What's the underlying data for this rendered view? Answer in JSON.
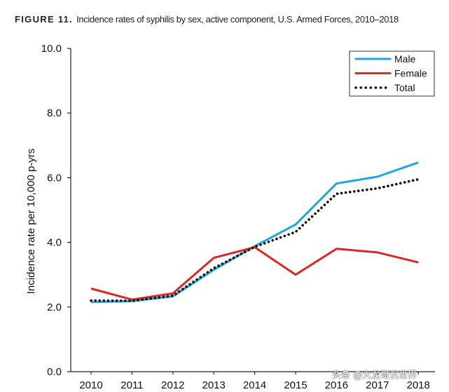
{
  "figure": {
    "label": "FIGURE 11.",
    "title": "Incidence rates of syphilis by sex, active component, U.S. Armed Forces, 2010–2018"
  },
  "chart_data": {
    "type": "line",
    "title": "Incidence rates of syphilis by sex, active component, U.S. Armed Forces, 2010–2018",
    "xlabel": "",
    "ylabel": "Incidence rate per 10,000 p-yrs",
    "categories": [
      "2010",
      "2011",
      "2012",
      "2013",
      "2014",
      "2015",
      "2016",
      "2017",
      "2018"
    ],
    "ylim": [
      0,
      10
    ],
    "yticks": [
      "0.0",
      "2.0",
      "4.0",
      "6.0",
      "8.0",
      "10.0"
    ],
    "grid": false,
    "legend_position": "top-right",
    "series": [
      {
        "name": "Male",
        "color": "#1ea7df",
        "style": "solid",
        "values": [
          2.15,
          2.18,
          2.33,
          3.15,
          3.88,
          4.55,
          5.82,
          6.03,
          6.47
        ]
      },
      {
        "name": "Female",
        "color": "#d42a2a",
        "style": "solid",
        "values": [
          2.57,
          2.23,
          2.42,
          3.52,
          3.85,
          3.0,
          3.8,
          3.69,
          3.38
        ]
      },
      {
        "name": "Total",
        "color": "#111111",
        "style": "dotted",
        "values": [
          2.2,
          2.19,
          2.35,
          3.2,
          3.86,
          4.32,
          5.5,
          5.67,
          5.95
        ]
      }
    ]
  },
  "watermark": "头条 @大龙哥沉世界"
}
